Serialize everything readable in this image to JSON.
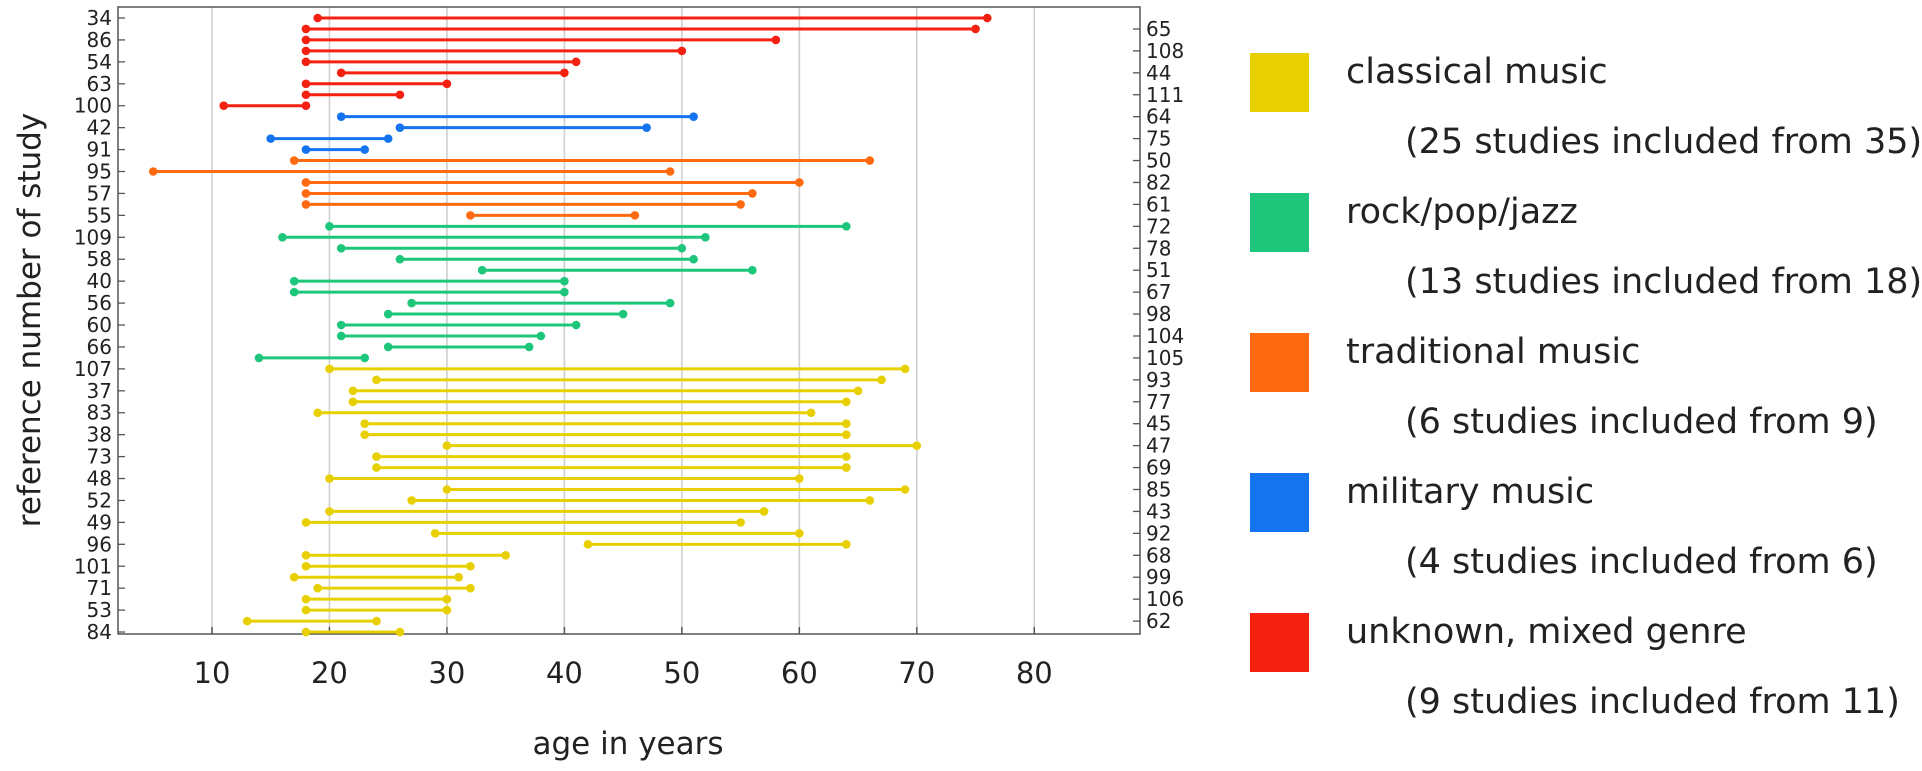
{
  "chart_data": {
    "type": "range-dot",
    "xlabel": "age in years",
    "ylabel": "reference number of study",
    "xlim": [
      2,
      89
    ],
    "x_ticks": [
      10,
      20,
      30,
      40,
      50,
      60,
      70,
      80
    ],
    "grid": "vertical",
    "genres": [
      {
        "key": "classical",
        "label": "classical music",
        "count_label": "(25 studies included from 35)",
        "color": "#e8d000"
      },
      {
        "key": "rock",
        "label": "rock/pop/jazz",
        "count_label": "(13 studies included from 18)",
        "color": "#1dc67a"
      },
      {
        "key": "traditional",
        "label": "traditional music",
        "count_label": "(6 studies included from 9)",
        "color": "#ff6a10"
      },
      {
        "key": "military",
        "label": "military music",
        "count_label": "(4 studies included from 6)",
        "color": "#1474f0"
      },
      {
        "key": "unknown",
        "label": "unknown, mixed genre",
        "count_label": "(9 studies included from 11)",
        "color": "#f42010"
      }
    ],
    "studies": [
      {
        "ref": "34",
        "side": "left",
        "genre": "unknown",
        "age_min": 19,
        "age_max": 76
      },
      {
        "ref": "65",
        "side": "right",
        "genre": "unknown",
        "age_min": 18,
        "age_max": 75
      },
      {
        "ref": "86",
        "side": "left",
        "genre": "unknown",
        "age_min": 18,
        "age_max": 58
      },
      {
        "ref": "108",
        "side": "right",
        "genre": "unknown",
        "age_min": 18,
        "age_max": 50
      },
      {
        "ref": "54",
        "side": "left",
        "genre": "unknown",
        "age_min": 18,
        "age_max": 41
      },
      {
        "ref": "44",
        "side": "right",
        "genre": "unknown",
        "age_min": 21,
        "age_max": 40
      },
      {
        "ref": "63",
        "side": "left",
        "genre": "unknown",
        "age_min": 18,
        "age_max": 30
      },
      {
        "ref": "111",
        "side": "right",
        "genre": "unknown",
        "age_min": 18,
        "age_max": 26
      },
      {
        "ref": "100",
        "side": "left",
        "genre": "unknown",
        "age_min": 11,
        "age_max": 18
      },
      {
        "ref": "64",
        "side": "right",
        "genre": "military",
        "age_min": 21,
        "age_max": 51
      },
      {
        "ref": "42",
        "side": "left",
        "genre": "military",
        "age_min": 26,
        "age_max": 47
      },
      {
        "ref": "75",
        "side": "right",
        "genre": "military",
        "age_min": 15,
        "age_max": 25
      },
      {
        "ref": "91",
        "side": "left",
        "genre": "military",
        "age_min": 18,
        "age_max": 23
      },
      {
        "ref": "50",
        "side": "right",
        "genre": "traditional",
        "age_min": 17,
        "age_max": 66
      },
      {
        "ref": "95",
        "side": "left",
        "genre": "traditional",
        "age_min": 5,
        "age_max": 49
      },
      {
        "ref": "82",
        "side": "right",
        "genre": "traditional",
        "age_min": 18,
        "age_max": 60
      },
      {
        "ref": "57",
        "side": "left",
        "genre": "traditional",
        "age_min": 18,
        "age_max": 56
      },
      {
        "ref": "61",
        "side": "right",
        "genre": "traditional",
        "age_min": 18,
        "age_max": 55
      },
      {
        "ref": "55",
        "side": "left",
        "genre": "traditional",
        "age_min": 32,
        "age_max": 46
      },
      {
        "ref": "72",
        "side": "right",
        "genre": "rock",
        "age_min": 20,
        "age_max": 64
      },
      {
        "ref": "109",
        "side": "left",
        "genre": "rock",
        "age_min": 16,
        "age_max": 52
      },
      {
        "ref": "78",
        "side": "right",
        "genre": "rock",
        "age_min": 21,
        "age_max": 50
      },
      {
        "ref": "58",
        "side": "left",
        "genre": "rock",
        "age_min": 26,
        "age_max": 51
      },
      {
        "ref": "51",
        "side": "right",
        "genre": "rock",
        "age_min": 33,
        "age_max": 56
      },
      {
        "ref": "40",
        "side": "left",
        "genre": "rock",
        "age_min": 17,
        "age_max": 40
      },
      {
        "ref": "67",
        "side": "right",
        "genre": "rock",
        "age_min": 17,
        "age_max": 40
      },
      {
        "ref": "56",
        "side": "left",
        "genre": "rock",
        "age_min": 27,
        "age_max": 49
      },
      {
        "ref": "98",
        "side": "right",
        "genre": "rock",
        "age_min": 25,
        "age_max": 45
      },
      {
        "ref": "60",
        "side": "left",
        "genre": "rock",
        "age_min": 21,
        "age_max": 41
      },
      {
        "ref": "104",
        "side": "right",
        "genre": "rock",
        "age_min": 21,
        "age_max": 38
      },
      {
        "ref": "66",
        "side": "left",
        "genre": "rock",
        "age_min": 25,
        "age_max": 37
      },
      {
        "ref": "105",
        "side": "right",
        "genre": "rock",
        "age_min": 14,
        "age_max": 23
      },
      {
        "ref": "107",
        "side": "left",
        "genre": "classical",
        "age_min": 20,
        "age_max": 69
      },
      {
        "ref": "93",
        "side": "right",
        "genre": "classical",
        "age_min": 24,
        "age_max": 67
      },
      {
        "ref": "37",
        "side": "left",
        "genre": "classical",
        "age_min": 22,
        "age_max": 65
      },
      {
        "ref": "77",
        "side": "right",
        "genre": "classical",
        "age_min": 22,
        "age_max": 64
      },
      {
        "ref": "83",
        "side": "left",
        "genre": "classical",
        "age_min": 19,
        "age_max": 61
      },
      {
        "ref": "45",
        "side": "right",
        "genre": "classical",
        "age_min": 23,
        "age_max": 64
      },
      {
        "ref": "38",
        "side": "left",
        "genre": "classical",
        "age_min": 23,
        "age_max": 64
      },
      {
        "ref": "47",
        "side": "right",
        "genre": "classical",
        "age_min": 30,
        "age_max": 70
      },
      {
        "ref": "73",
        "side": "left",
        "genre": "classical",
        "age_min": 24,
        "age_max": 64
      },
      {
        "ref": "69",
        "side": "right",
        "genre": "classical",
        "age_min": 24,
        "age_max": 64
      },
      {
        "ref": "48",
        "side": "left",
        "genre": "classical",
        "age_min": 20,
        "age_max": 60
      },
      {
        "ref": "85",
        "side": "right",
        "genre": "classical",
        "age_min": 30,
        "age_max": 69
      },
      {
        "ref": "52",
        "side": "left",
        "genre": "classical",
        "age_min": 27,
        "age_max": 66
      },
      {
        "ref": "43",
        "side": "right",
        "genre": "classical",
        "age_min": 20,
        "age_max": 57
      },
      {
        "ref": "49",
        "side": "left",
        "genre": "classical",
        "age_min": 18,
        "age_max": 55
      },
      {
        "ref": "92",
        "side": "right",
        "genre": "classical",
        "age_min": 29,
        "age_max": 60
      },
      {
        "ref": "96",
        "side": "left",
        "genre": "classical",
        "age_min": 42,
        "age_max": 64
      },
      {
        "ref": "68",
        "side": "right",
        "genre": "classical",
        "age_min": 18,
        "age_max": 35
      },
      {
        "ref": "101",
        "side": "left",
        "genre": "classical",
        "age_min": 18,
        "age_max": 32
      },
      {
        "ref": "99",
        "side": "right",
        "genre": "classical",
        "age_min": 17,
        "age_max": 31
      },
      {
        "ref": "71",
        "side": "left",
        "genre": "classical",
        "age_min": 19,
        "age_max": 32
      },
      {
        "ref": "106",
        "side": "right",
        "genre": "classical",
        "age_min": 18,
        "age_max": 30
      },
      {
        "ref": "53",
        "side": "left",
        "genre": "classical",
        "age_min": 18,
        "age_max": 30
      },
      {
        "ref": "62",
        "side": "right",
        "genre": "classical",
        "age_min": 13,
        "age_max": 24
      },
      {
        "ref": "84",
        "side": "left",
        "genre": "classical",
        "age_min": 18,
        "age_max": 26
      }
    ]
  }
}
